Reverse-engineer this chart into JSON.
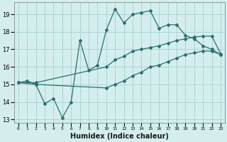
{
  "xlabel": "Humidex (Indice chaleur)",
  "background_color": "#d4eeee",
  "grid_color": "#aad4d4",
  "line_color": "#2d6e6e",
  "xlim": [
    -0.5,
    23.5
  ],
  "ylim": [
    12.8,
    19.7
  ],
  "yticks": [
    13,
    14,
    15,
    16,
    17,
    18,
    19
  ],
  "xticks": [
    0,
    1,
    2,
    3,
    4,
    5,
    6,
    7,
    8,
    9,
    10,
    11,
    12,
    13,
    14,
    15,
    16,
    17,
    18,
    19,
    20,
    21,
    22,
    23
  ],
  "line1_x": [
    0,
    1,
    2,
    3,
    4,
    5,
    6,
    7,
    8,
    9,
    10,
    11,
    12,
    13,
    14,
    15,
    16,
    17,
    18,
    19,
    20,
    21,
    22,
    23
  ],
  "line1_y": [
    15.1,
    15.2,
    15.0,
    13.9,
    14.2,
    13.1,
    14.0,
    17.5,
    15.8,
    16.1,
    18.1,
    19.3,
    18.5,
    19.0,
    19.1,
    19.2,
    18.2,
    18.4,
    18.4,
    17.8,
    17.6,
    17.2,
    17.0,
    16.7
  ],
  "line2_x": [
    0,
    2,
    10,
    11,
    12,
    13,
    14,
    15,
    16,
    17,
    18,
    19,
    20,
    21,
    22,
    23
  ],
  "line2_y": [
    15.1,
    15.1,
    16.0,
    16.4,
    16.6,
    16.9,
    17.0,
    17.1,
    17.2,
    17.35,
    17.5,
    17.6,
    17.7,
    17.75,
    17.75,
    16.75
  ],
  "line3_x": [
    0,
    2,
    10,
    11,
    12,
    13,
    14,
    15,
    16,
    17,
    18,
    19,
    20,
    21,
    22,
    23
  ],
  "line3_y": [
    15.1,
    15.0,
    14.8,
    15.0,
    15.2,
    15.5,
    15.7,
    16.0,
    16.1,
    16.3,
    16.5,
    16.7,
    16.8,
    16.9,
    16.9,
    16.7
  ]
}
